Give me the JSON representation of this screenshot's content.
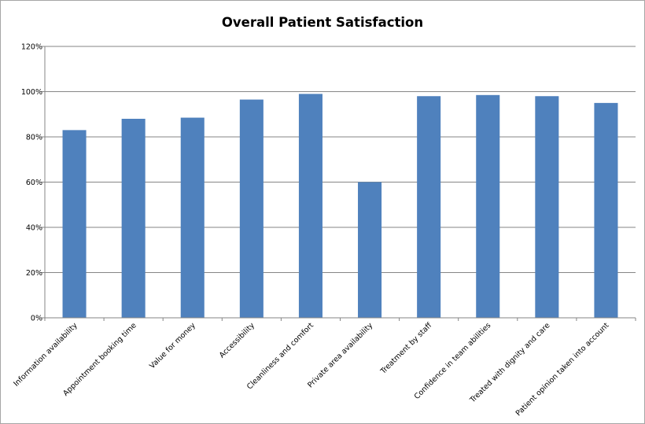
{
  "chart_data": {
    "type": "bar",
    "title": "Overall Patient Satisfaction",
    "xlabel": "",
    "ylabel": "",
    "ylim": [
      0,
      120
    ],
    "yticks": [
      0,
      20,
      40,
      60,
      80,
      100,
      120
    ],
    "ytick_labels": [
      "0%",
      "20%",
      "40%",
      "60%",
      "80%",
      "100%",
      "120%"
    ],
    "grid": true,
    "legend": "none",
    "bar_color": "#4F81BD",
    "categories": [
      "Information availability",
      "Appointment booking time",
      "Value for money",
      "Accessibility",
      "Cleanliness and comfort",
      "Private area availability",
      "Treatment by staff",
      "Confidence in team abilities",
      "Treated with dignity and care",
      "Patient opinion taken into account"
    ],
    "values": [
      83,
      88,
      88.5,
      96.5,
      99,
      60,
      98,
      98.5,
      98,
      95
    ]
  }
}
